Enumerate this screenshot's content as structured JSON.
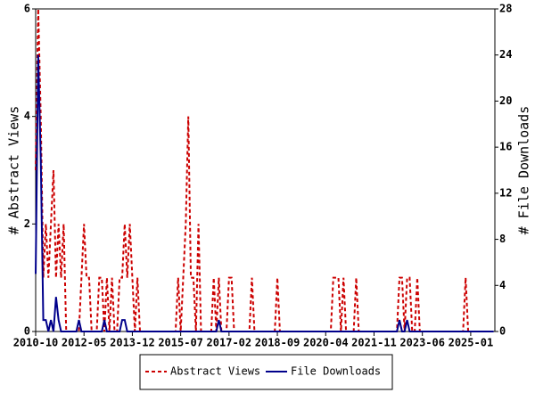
{
  "chart_data": {
    "type": "line",
    "y_label": "# Abstract Views",
    "y2_label": "# File Downloads",
    "x": [
      "2010-10",
      "2010-11",
      "2010-12",
      "2011-01",
      "2011-02",
      "2011-03",
      "2011-04",
      "2011-05",
      "2011-06",
      "2011-07",
      "2011-08",
      "2011-09",
      "2011-10",
      "2011-11",
      "2011-12",
      "2012-01",
      "2012-02",
      "2012-03",
      "2012-04",
      "2012-05",
      "2012-06",
      "2012-07",
      "2012-08",
      "2012-09",
      "2012-10",
      "2012-11",
      "2012-12",
      "2013-01",
      "2013-02",
      "2013-03",
      "2013-04",
      "2013-05",
      "2013-06",
      "2013-07",
      "2013-08",
      "2013-09",
      "2013-10",
      "2013-11",
      "2013-12",
      "2014-01",
      "2014-02",
      "2014-03",
      "2014-04",
      "2014-05",
      "2014-06",
      "2014-07",
      "2014-08",
      "2014-09",
      "2014-10",
      "2014-11",
      "2014-12",
      "2015-01",
      "2015-02",
      "2015-03",
      "2015-04",
      "2015-05",
      "2015-06",
      "2015-07",
      "2015-08",
      "2015-09",
      "2015-10",
      "2015-11",
      "2015-12",
      "2016-01",
      "2016-02",
      "2016-03",
      "2016-04",
      "2016-05",
      "2016-06",
      "2016-07",
      "2016-08",
      "2016-09",
      "2016-10",
      "2016-11",
      "2016-12",
      "2017-01",
      "2017-02",
      "2017-03",
      "2017-04",
      "2017-05",
      "2017-06",
      "2017-07",
      "2017-08",
      "2017-09",
      "2017-10",
      "2017-11",
      "2017-12",
      "2018-01",
      "2018-02",
      "2018-03",
      "2018-04",
      "2018-05",
      "2018-06",
      "2018-07",
      "2018-08",
      "2018-09",
      "2018-10",
      "2018-11",
      "2018-12",
      "2019-01",
      "2019-02",
      "2019-03",
      "2019-04",
      "2019-05",
      "2019-06",
      "2019-07",
      "2019-08",
      "2019-09",
      "2019-10",
      "2019-11",
      "2019-12",
      "2020-01",
      "2020-02",
      "2020-03",
      "2020-04",
      "2020-05",
      "2020-06",
      "2020-07",
      "2020-08",
      "2020-09",
      "2020-10",
      "2020-11",
      "2020-12",
      "2021-01",
      "2021-02",
      "2021-03",
      "2021-04",
      "2021-05",
      "2021-06",
      "2021-07",
      "2021-08",
      "2021-09",
      "2021-10",
      "2021-11",
      "2021-12",
      "2022-01",
      "2022-02",
      "2022-03",
      "2022-04",
      "2022-05",
      "2022-06",
      "2022-07",
      "2022-08",
      "2022-09",
      "2022-10",
      "2022-11",
      "2022-12",
      "2023-01",
      "2023-02",
      "2023-03",
      "2023-04",
      "2023-05",
      "2023-06",
      "2023-07",
      "2023-08",
      "2023-09",
      "2023-10",
      "2023-11",
      "2023-12",
      "2024-01",
      "2024-02",
      "2024-03",
      "2024-04",
      "2024-05",
      "2024-06",
      "2024-07",
      "2024-08",
      "2024-09",
      "2024-10",
      "2024-11",
      "2024-12",
      "2025-01",
      "2025-02",
      "2025-03",
      "2025-04",
      "2025-05",
      "2025-06",
      "2025-07",
      "2025-08",
      "2025-09",
      "2025-10"
    ],
    "series": [
      {
        "name": "Abstract Views",
        "color": "#cc0000",
        "dash": true,
        "values": [
          3,
          6,
          4,
          1,
          2,
          1,
          2,
          3,
          1,
          2,
          1,
          2,
          0,
          0,
          0,
          0,
          0,
          0,
          1,
          2,
          1,
          1,
          0,
          0,
          0,
          1,
          1,
          0,
          1,
          0,
          1,
          0,
          0,
          1,
          1,
          2,
          1,
          2,
          1,
          0,
          1,
          0,
          0,
          0,
          0,
          0,
          0,
          0,
          0,
          0,
          0,
          0,
          0,
          0,
          0,
          0,
          1,
          0,
          1,
          2,
          4,
          1,
          1,
          0,
          2,
          0,
          0,
          0,
          0,
          0,
          1,
          0,
          1,
          0,
          0,
          0,
          1,
          1,
          0,
          0,
          0,
          0,
          0,
          0,
          0,
          1,
          0,
          0,
          0,
          0,
          0,
          0,
          0,
          0,
          0,
          1,
          0,
          0,
          0,
          0,
          0,
          0,
          0,
          0,
          0,
          0,
          0,
          0,
          0,
          0,
          0,
          0,
          0,
          0,
          0,
          0,
          0,
          1,
          1,
          1,
          0,
          1,
          0,
          0,
          0,
          0,
          1,
          0,
          0,
          0,
          0,
          0,
          0,
          0,
          0,
          0,
          0,
          0,
          0,
          0,
          0,
          0,
          0,
          1,
          1,
          0,
          1,
          1,
          0,
          0,
          1,
          0,
          0,
          0,
          0,
          0,
          0,
          0,
          0,
          0,
          0,
          0,
          0,
          0,
          0,
          0,
          0,
          0,
          0,
          1,
          0,
          0,
          0,
          0,
          0,
          0,
          0,
          0,
          0,
          0,
          0
        ]
      },
      {
        "name": "File Downloads",
        "color": "#00008b",
        "axis": "y2",
        "values": [
          5,
          24,
          15,
          1,
          1,
          0,
          1,
          0,
          3,
          1,
          0,
          0,
          0,
          0,
          0,
          0,
          0,
          1,
          0,
          0,
          0,
          0,
          0,
          0,
          0,
          0,
          0,
          1,
          0,
          0,
          0,
          0,
          0,
          0,
          1,
          1,
          0,
          0,
          0,
          0,
          0,
          0,
          0,
          0,
          0,
          0,
          0,
          0,
          0,
          0,
          0,
          0,
          0,
          0,
          0,
          0,
          0,
          0,
          0,
          0,
          0,
          0,
          0,
          0,
          0,
          0,
          0,
          0,
          0,
          0,
          0,
          0,
          1,
          0,
          0,
          0,
          0,
          0,
          0,
          0,
          0,
          0,
          0,
          0,
          0,
          0,
          0,
          0,
          0,
          0,
          0,
          0,
          0,
          0,
          0,
          0,
          0,
          0,
          0,
          0,
          0,
          0,
          0,
          0,
          0,
          0,
          0,
          0,
          0,
          0,
          0,
          0,
          0,
          0,
          0,
          0,
          0,
          0,
          0,
          0,
          0,
          0,
          0,
          0,
          0,
          0,
          0,
          0,
          0,
          0,
          0,
          0,
          0,
          0,
          0,
          0,
          0,
          0,
          0,
          0,
          0,
          0,
          0,
          1,
          0,
          0,
          1,
          0,
          0,
          0,
          0,
          0,
          0,
          0,
          0,
          0,
          0,
          0,
          0,
          0,
          0,
          0,
          0,
          0,
          0,
          0,
          0,
          0,
          0,
          0,
          0,
          0,
          0,
          0,
          0,
          0,
          0,
          0,
          0,
          0,
          0
        ]
      }
    ],
    "xticks": [
      "2010-10",
      "2012-05",
      "2013-12",
      "2015-07",
      "2017-02",
      "2018-09",
      "2020-04",
      "2021-11",
      "2023-06",
      "2025-01"
    ],
    "ylim": [
      0,
      6
    ],
    "yticks": [
      0,
      2,
      4,
      6
    ],
    "y2lim": [
      0,
      28
    ],
    "y2ticks": [
      0,
      4,
      8,
      12,
      16,
      20,
      24,
      28
    ],
    "legend": "bottom"
  }
}
